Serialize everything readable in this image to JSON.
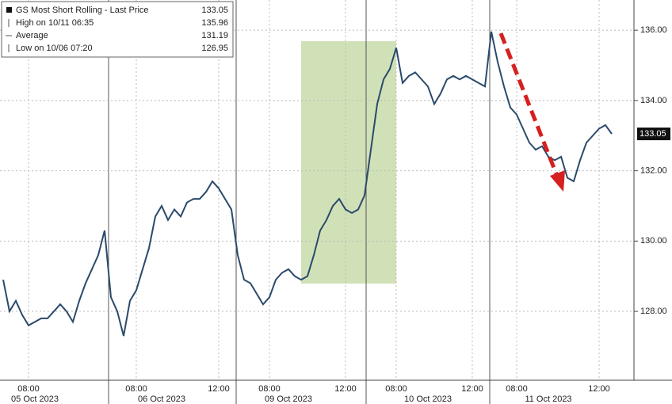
{
  "chart_data": {
    "type": "line",
    "legend": [
      {
        "label": "GS Most Short Rolling - Last Price",
        "value": 133.05
      },
      {
        "label": "High on 10/11 06:35",
        "value": 135.96
      },
      {
        "label": "Average",
        "value": 131.19
      },
      {
        "label": "Low on 10/06 07:20",
        "value": 126.95
      }
    ],
    "categories": [
      null,
      null,
      null,
      null,
      "08:00",
      null,
      null,
      null,
      null,
      null,
      null,
      null,
      null,
      null,
      null,
      null,
      null,
      null,
      null,
      null,
      null,
      "08:00",
      null,
      null,
      null,
      null,
      null,
      null,
      null,
      null,
      null,
      null,
      null,
      null,
      "12:00",
      null,
      null,
      null,
      null,
      null,
      null,
      null,
      "08:00",
      null,
      null,
      null,
      null,
      null,
      null,
      null,
      null,
      null,
      null,
      null,
      "12:00",
      null,
      null,
      null,
      null,
      null,
      null,
      null,
      "08:00",
      null,
      null,
      null,
      null,
      null,
      null,
      null,
      null,
      null,
      null,
      null,
      "12:00",
      null,
      null,
      null,
      null,
      null,
      null,
      "08:00",
      null,
      null,
      null,
      null,
      null,
      null,
      null,
      null,
      null,
      null,
      null,
      null,
      "12:00",
      null,
      null
    ],
    "date_categories": [
      null,
      null,
      null,
      null,
      null,
      "05 Oct 2023",
      null,
      null,
      null,
      null,
      null,
      null,
      null,
      null,
      null,
      null,
      null,
      null,
      null,
      null,
      null,
      null,
      null,
      null,
      null,
      "06 Oct 2023",
      null,
      null,
      null,
      null,
      null,
      null,
      null,
      null,
      null,
      null,
      null,
      null,
      null,
      null,
      null,
      null,
      null,
      null,
      null,
      "09 Oct 2023",
      null,
      null,
      null,
      null,
      null,
      null,
      null,
      null,
      null,
      null,
      null,
      null,
      null,
      null,
      null,
      null,
      null,
      null,
      null,
      null,
      null,
      "10 Oct 2023",
      null,
      null,
      null,
      null,
      null,
      null,
      null,
      null,
      null,
      null,
      null,
      null,
      null,
      null,
      null,
      null,
      null,
      null,
      "11 Oct 2023",
      null,
      null,
      null,
      null,
      null,
      null,
      null,
      null,
      null,
      null
    ],
    "series": [
      {
        "name": "GS Most Short Rolling - Last Price",
        "color": "#2b4a6b",
        "values": [
          128.9,
          128.0,
          128.3,
          127.9,
          127.6,
          127.7,
          127.8,
          127.8,
          128.0,
          128.2,
          128.0,
          127.7,
          128.3,
          128.8,
          129.2,
          129.6,
          130.3,
          128.4,
          128.0,
          127.3,
          128.3,
          128.6,
          129.2,
          129.8,
          130.7,
          131.0,
          130.6,
          130.9,
          130.7,
          131.1,
          131.2,
          131.2,
          131.4,
          131.7,
          131.5,
          131.2,
          130.9,
          129.6,
          128.9,
          128.8,
          128.5,
          128.2,
          128.4,
          128.9,
          129.1,
          129.2,
          129.0,
          128.9,
          129.0,
          129.6,
          130.3,
          130.6,
          131.0,
          131.2,
          130.9,
          130.8,
          130.9,
          131.3,
          132.6,
          133.9,
          134.6,
          134.9,
          135.5,
          134.5,
          134.7,
          134.8,
          134.6,
          134.4,
          133.9,
          134.2,
          134.6,
          134.7,
          134.6,
          134.7,
          134.6,
          134.5,
          134.4,
          135.96,
          135.1,
          134.4,
          133.8,
          133.6,
          133.2,
          132.8,
          132.6,
          132.7,
          132.4,
          132.3,
          132.4,
          131.8,
          131.7,
          132.3,
          132.8,
          133.0,
          133.2,
          133.3,
          133.05
        ]
      }
    ],
    "ylim": [
      126.04,
      136.86
    ],
    "yticks": [
      {
        "value": 128,
        "label": "128.00"
      },
      {
        "value": 130,
        "label": "130.00"
      },
      {
        "value": 132,
        "label": "132.00"
      },
      {
        "value": 134,
        "label": "134.00"
      },
      {
        "value": 136,
        "label": "136.00"
      }
    ],
    "grid": true
  }
}
